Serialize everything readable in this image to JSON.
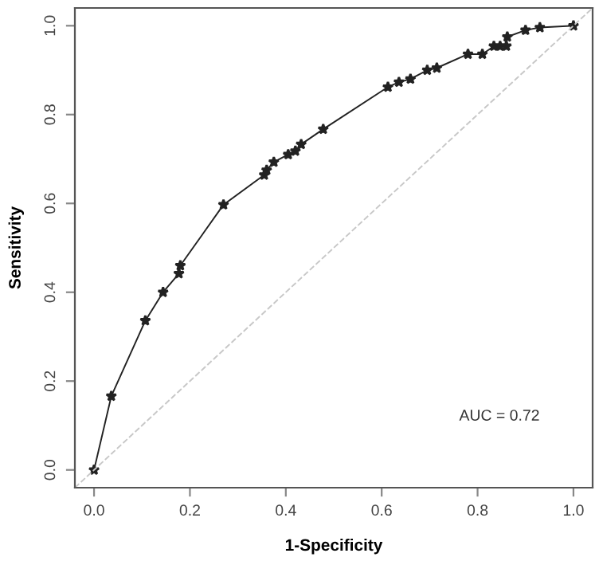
{
  "chart_data": {
    "type": "line",
    "xlabel": "1-Specificity",
    "ylabel": "Sensitivity",
    "annotations": [
      "AUC = 0.72"
    ],
    "xlim": [
      -0.04,
      1.04
    ],
    "ylim": [
      -0.04,
      1.04
    ],
    "xticks": [
      {
        "value": 0,
        "label": "0.0"
      },
      0.2,
      0.4,
      0.6,
      0.8,
      {
        "value": 1,
        "label": "1.0"
      }
    ],
    "yticks": [
      {
        "value": 0,
        "label": "0.0"
      },
      0.2,
      0.4,
      0.6,
      0.8,
      {
        "value": 1,
        "label": "1.0"
      }
    ],
    "grid": false,
    "legend": false,
    "series": [
      {
        "color": "#222222",
        "marker": "star",
        "line_style": "solid",
        "x": [
          0,
          0.036,
          0.107,
          0.144,
          0.177,
          0.18,
          0.27,
          0.355,
          0.36,
          0.375,
          0.405,
          0.42,
          0.432,
          0.478,
          0.613,
          0.636,
          0.66,
          0.695,
          0.715,
          0.78,
          0.81,
          0.834,
          0.847,
          0.86,
          0.862,
          0.9,
          0.93,
          1.0
        ],
        "values": [
          0,
          0.166,
          0.336,
          0.4,
          0.442,
          0.46,
          0.597,
          0.664,
          0.675,
          0.693,
          0.71,
          0.718,
          0.733,
          0.767,
          0.862,
          0.873,
          0.88,
          0.9,
          0.905,
          0.936,
          0.936,
          0.954,
          0.954,
          0.954,
          0.975,
          0.99,
          0.996,
          1.0
        ]
      },
      {
        "color": "#c8c8c8",
        "marker": "none",
        "line_style": "dashed",
        "x": [
          -0.04,
          1.04
        ],
        "values": [
          -0.04,
          1.04
        ]
      }
    ]
  }
}
